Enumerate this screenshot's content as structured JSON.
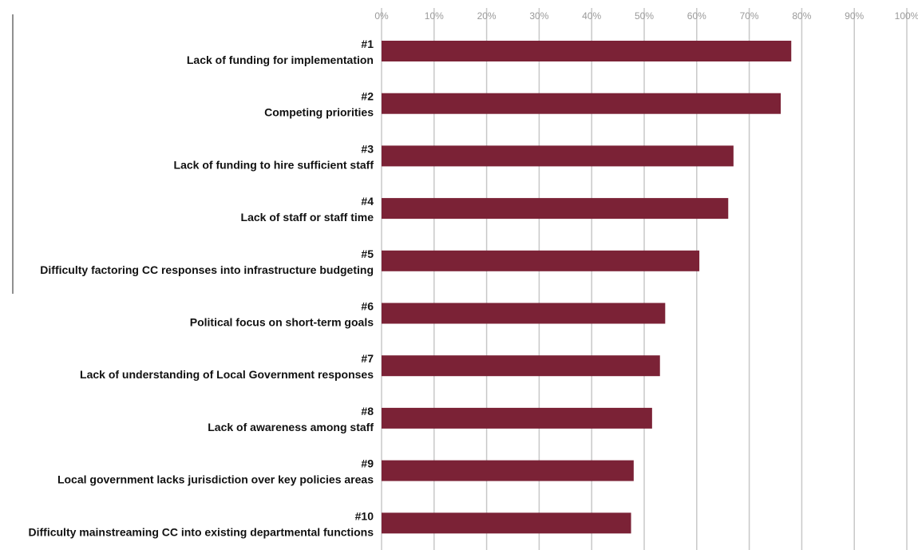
{
  "chart_data": {
    "type": "bar",
    "orientation": "horizontal",
    "x_ticks": [
      "0%",
      "10%",
      "20%",
      "30%",
      "40%",
      "50%",
      "60%",
      "70%",
      "80%",
      "90%",
      "100%"
    ],
    "xlim": [
      0,
      100
    ],
    "grid": true,
    "bar_color": "#7b2236",
    "grid_color": "#c8c8c8",
    "categories": [
      {
        "rank": "#1",
        "label": "Lack of  funding for implementation"
      },
      {
        "rank": "#2",
        "label": "Competing priorities"
      },
      {
        "rank": "#3",
        "label": "Lack of  funding to hire sufficient staff"
      },
      {
        "rank": "#4",
        "label": "Lack of  staff or staff time"
      },
      {
        "rank": "#5",
        "label": "Difficulty factoring CC responses into infrastructure budgeting"
      },
      {
        "rank": "#6",
        "label": "Political focus on short-term goals"
      },
      {
        "rank": "#7",
        "label": "Lack of understanding of Local Government responses"
      },
      {
        "rank": "#8",
        "label": "Lack of awareness among staff"
      },
      {
        "rank": "#9",
        "label": "Local government lacks jurisdiction over key policies areas"
      },
      {
        "rank": "#10",
        "label": "Difficulty mainstreaming CC into existing departmental functions"
      }
    ],
    "values": [
      78,
      76,
      67,
      66,
      60.5,
      54,
      53,
      51.5,
      48,
      47.5
    ]
  }
}
